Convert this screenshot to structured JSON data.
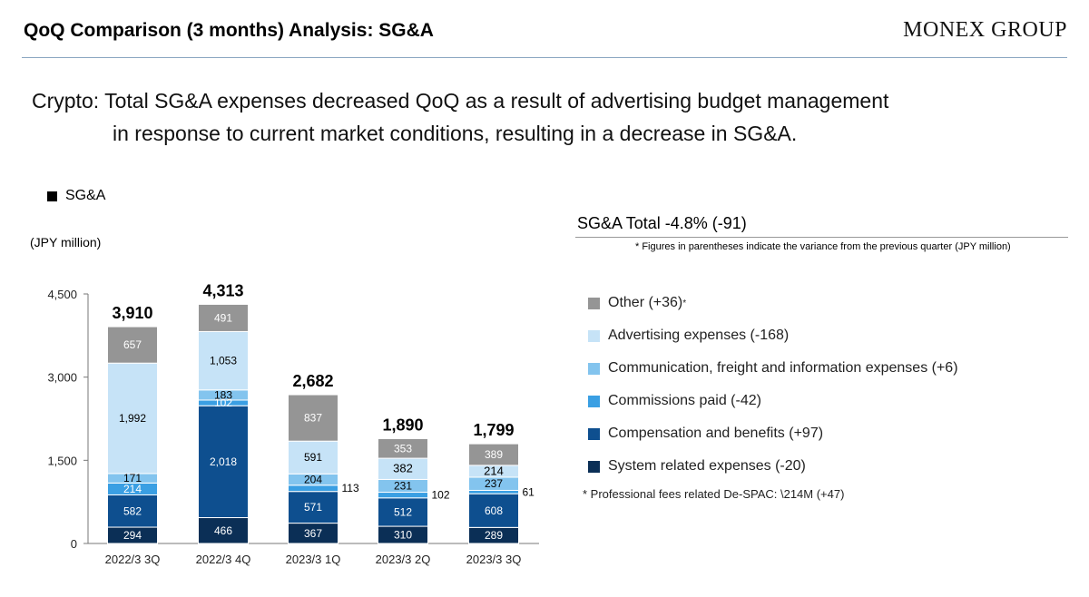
{
  "header": {
    "title": "QoQ Comparison (3 months) Analysis: SG&A",
    "logo": "MONEX GROUP"
  },
  "headline": {
    "line1": "Crypto: Total SG&A expenses decreased QoQ as a result of advertising budget management",
    "line2": "in response to current market conditions, resulting in a decrease in SG&A."
  },
  "chart_key": "SG&A",
  "unit_label": "(JPY million)",
  "summary": {
    "title": "SG&A Total -4.8% (-91)",
    "note": "* Figures in parentheses indicate the variance from the previous quarter (JPY million)",
    "footnote": "* Professional fees related De-SPAC: \\214M (+47)"
  },
  "legend": [
    {
      "label": "Other (+36)",
      "sup": "*",
      "color": "#959595"
    },
    {
      "label": "Advertising expenses (-168)",
      "sup": "",
      "color": "#c6e3f7"
    },
    {
      "label": "Communication, freight and information expenses (+6)",
      "sup": "",
      "color": "#83c4ee"
    },
    {
      "label": "Commissions paid (-42)",
      "sup": "",
      "color": "#3a9fe3"
    },
    {
      "label": "Compensation and benefits (+97)",
      "sup": "",
      "color": "#0e4f8f"
    },
    {
      "label": "System related expenses (-20)",
      "sup": "",
      "color": "#0b2f56"
    }
  ],
  "chart_data": {
    "type": "bar",
    "stacked": true,
    "categories": [
      "2022/3 3Q",
      "2022/3 4Q",
      "2023/3 1Q",
      "2023/3 2Q",
      "2023/3 3Q"
    ],
    "totals": [
      "3,910",
      "4,313",
      "2,682",
      "1,890",
      "1,799"
    ],
    "series": [
      {
        "name": "System related expenses",
        "color": "#0b2f56",
        "values": [
          294,
          466,
          367,
          310,
          289
        ],
        "labels": [
          "294",
          "466",
          "367",
          "310",
          "289"
        ]
      },
      {
        "name": "Compensation and benefits",
        "color": "#0e4f8f",
        "values": [
          582,
          2018,
          571,
          512,
          608
        ],
        "labels": [
          "582",
          "2,018",
          "571",
          "512",
          "608"
        ]
      },
      {
        "name": "Commissions paid",
        "color": "#3a9fe3",
        "values": [
          214,
          102,
          113,
          102,
          61
        ],
        "labels": [
          "214",
          "102",
          "113",
          "102",
          "61"
        ]
      },
      {
        "name": "Communication, freight and information expenses",
        "color": "#83c4ee",
        "values": [
          171,
          183,
          204,
          231,
          237
        ],
        "labels": [
          "171",
          "183",
          "204",
          "231",
          "237"
        ]
      },
      {
        "name": "Advertising expenses",
        "color": "#c6e3f7",
        "values": [
          1992,
          1053,
          591,
          382,
          214
        ],
        "labels": [
          "1,992",
          "1,053",
          "591",
          "382",
          "214"
        ]
      },
      {
        "name": "Other",
        "color": "#959595",
        "values": [
          657,
          491,
          837,
          353,
          389
        ],
        "labels": [
          "657",
          "491",
          "837",
          "353",
          "389"
        ]
      }
    ],
    "yticks": [
      "0",
      "1,500",
      "3,000",
      "4,500"
    ],
    "ytick_values": [
      0,
      1500,
      3000,
      4500
    ],
    "ylim": [
      0,
      4500
    ]
  }
}
